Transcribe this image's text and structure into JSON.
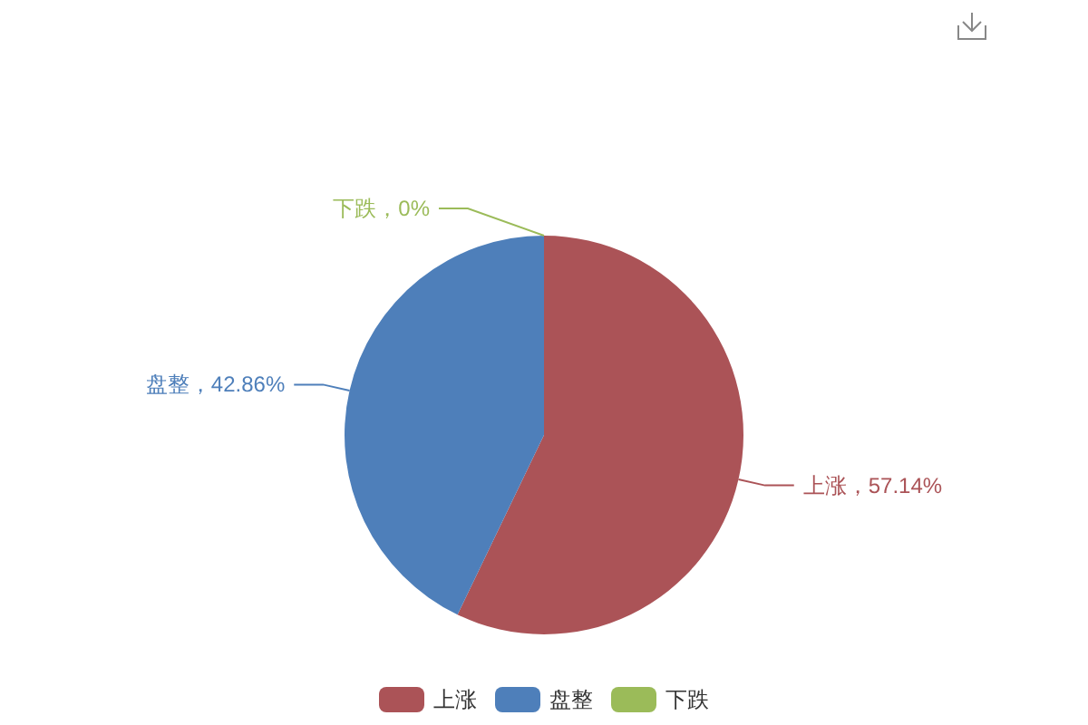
{
  "chart_data": {
    "type": "pie",
    "categories": [
      "上涨",
      "盘整",
      "下跌"
    ],
    "values": [
      57.14,
      42.86,
      0
    ],
    "colors": [
      "#ab5357",
      "#4e7fba",
      "#9bbb59"
    ],
    "value_labels": [
      "上涨，57.14%",
      "盘整，42.86%",
      "下跌，0%"
    ],
    "legend": "bottom"
  }
}
